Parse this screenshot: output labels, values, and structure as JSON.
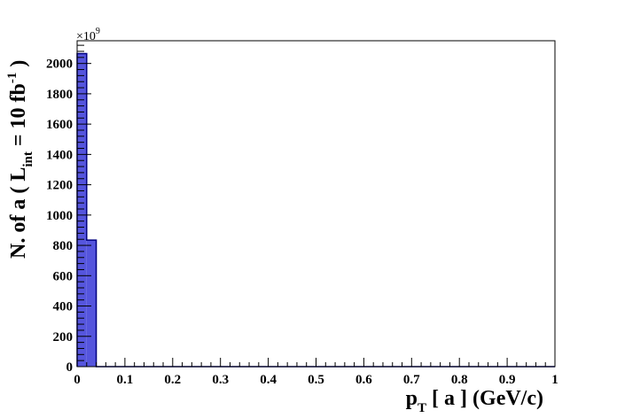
{
  "chart_data": {
    "type": "bar",
    "title": "",
    "xlabel": {
      "main": "p",
      "sub": "T",
      "rest": " [ a ] (GeV/c)"
    },
    "ylabel": {
      "prefix": "N. of a ( L",
      "sub": "int",
      "mid": " = 10 fb",
      "sup": "-1",
      "suffix": " )"
    },
    "y_multiplier": {
      "base": "×10",
      "exponent": "9"
    },
    "xlim": [
      0,
      1
    ],
    "ylim": [
      0,
      2150
    ],
    "bin_width": 0.02,
    "x_ticks": [
      "0",
      "0.1",
      "0.2",
      "0.3",
      "0.4",
      "0.5",
      "0.6",
      "0.7",
      "0.8",
      "0.9",
      "1"
    ],
    "y_ticks": [
      "0",
      "200",
      "400",
      "600",
      "800",
      "1000",
      "1200",
      "1400",
      "1600",
      "1800",
      "2000"
    ],
    "bins": [
      {
        "x_low": 0.0,
        "x_high": 0.02,
        "value": 2065
      },
      {
        "x_low": 0.02,
        "x_high": 0.04,
        "value": 835
      }
    ],
    "fill_color": "#5555dd",
    "edge_color": "#000080",
    "grid": false,
    "legend": "none"
  }
}
